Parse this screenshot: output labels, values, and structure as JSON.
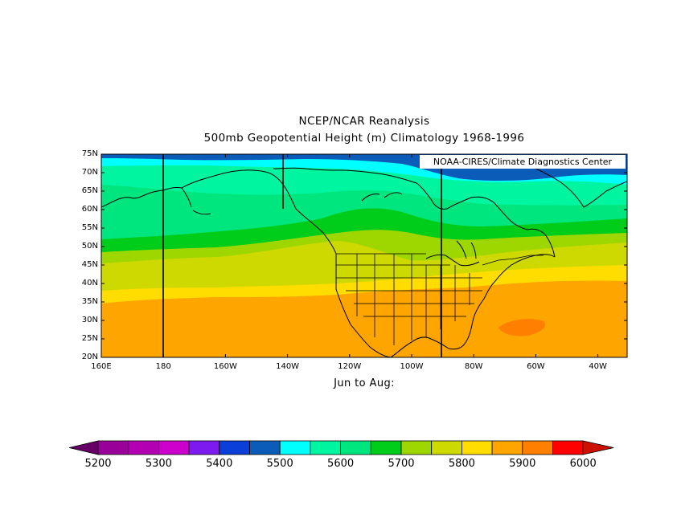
{
  "titles": {
    "line1": "NCEP/NCAR Reanalysis",
    "line2": "500mb Geopotential Height (m) Climatology 1968-1996",
    "season": "Jun to Aug:",
    "credit": "NOAA-CIRES/Climate Diagnostics Center"
  },
  "map": {
    "lat_labels": [
      "75N",
      "70N",
      "65N",
      "60N",
      "55N",
      "50N",
      "45N",
      "40N",
      "35N",
      "30N",
      "25N",
      "20N"
    ],
    "lon_labels": [
      "160E",
      "180",
      "160W",
      "140W",
      "120W",
      "100W",
      "80W",
      "60W",
      "40W"
    ],
    "meridian_lines": [
      "180",
      "140W",
      "90W"
    ],
    "bands_north_to_south": [
      {
        "value": 5450,
        "color": "#0a5cb8"
      },
      {
        "value": 5500,
        "color": "#00ffff"
      },
      {
        "value": 5550,
        "color": "#00f5a0"
      },
      {
        "value": 5600,
        "color": "#00e67e"
      },
      {
        "value": 5650,
        "color": "#00cc1a"
      },
      {
        "value": 5700,
        "color": "#9ed600"
      },
      {
        "value": 5750,
        "color": "#cdd900"
      },
      {
        "value": 5800,
        "color": "#ffdd00"
      },
      {
        "value": 5850,
        "color": "#ffa500"
      },
      {
        "value": 5900,
        "color": "#ff7f00"
      }
    ]
  },
  "colorbar": {
    "colors": [
      "#990099",
      "#b300b3",
      "#cc00cc",
      "#7d1af0",
      "#0a40d9",
      "#0a5cb8",
      "#00ffff",
      "#00f5a0",
      "#00e67e",
      "#00cc1a",
      "#9ed600",
      "#cdd900",
      "#ffdd00",
      "#ffa500",
      "#ff7f00",
      "#ff0000"
    ],
    "under_color": "#660066",
    "over_color": "#cc1100",
    "labels": [
      "5200",
      "5300",
      "5400",
      "5500",
      "5600",
      "5700",
      "5800",
      "5900",
      "6000"
    ]
  }
}
